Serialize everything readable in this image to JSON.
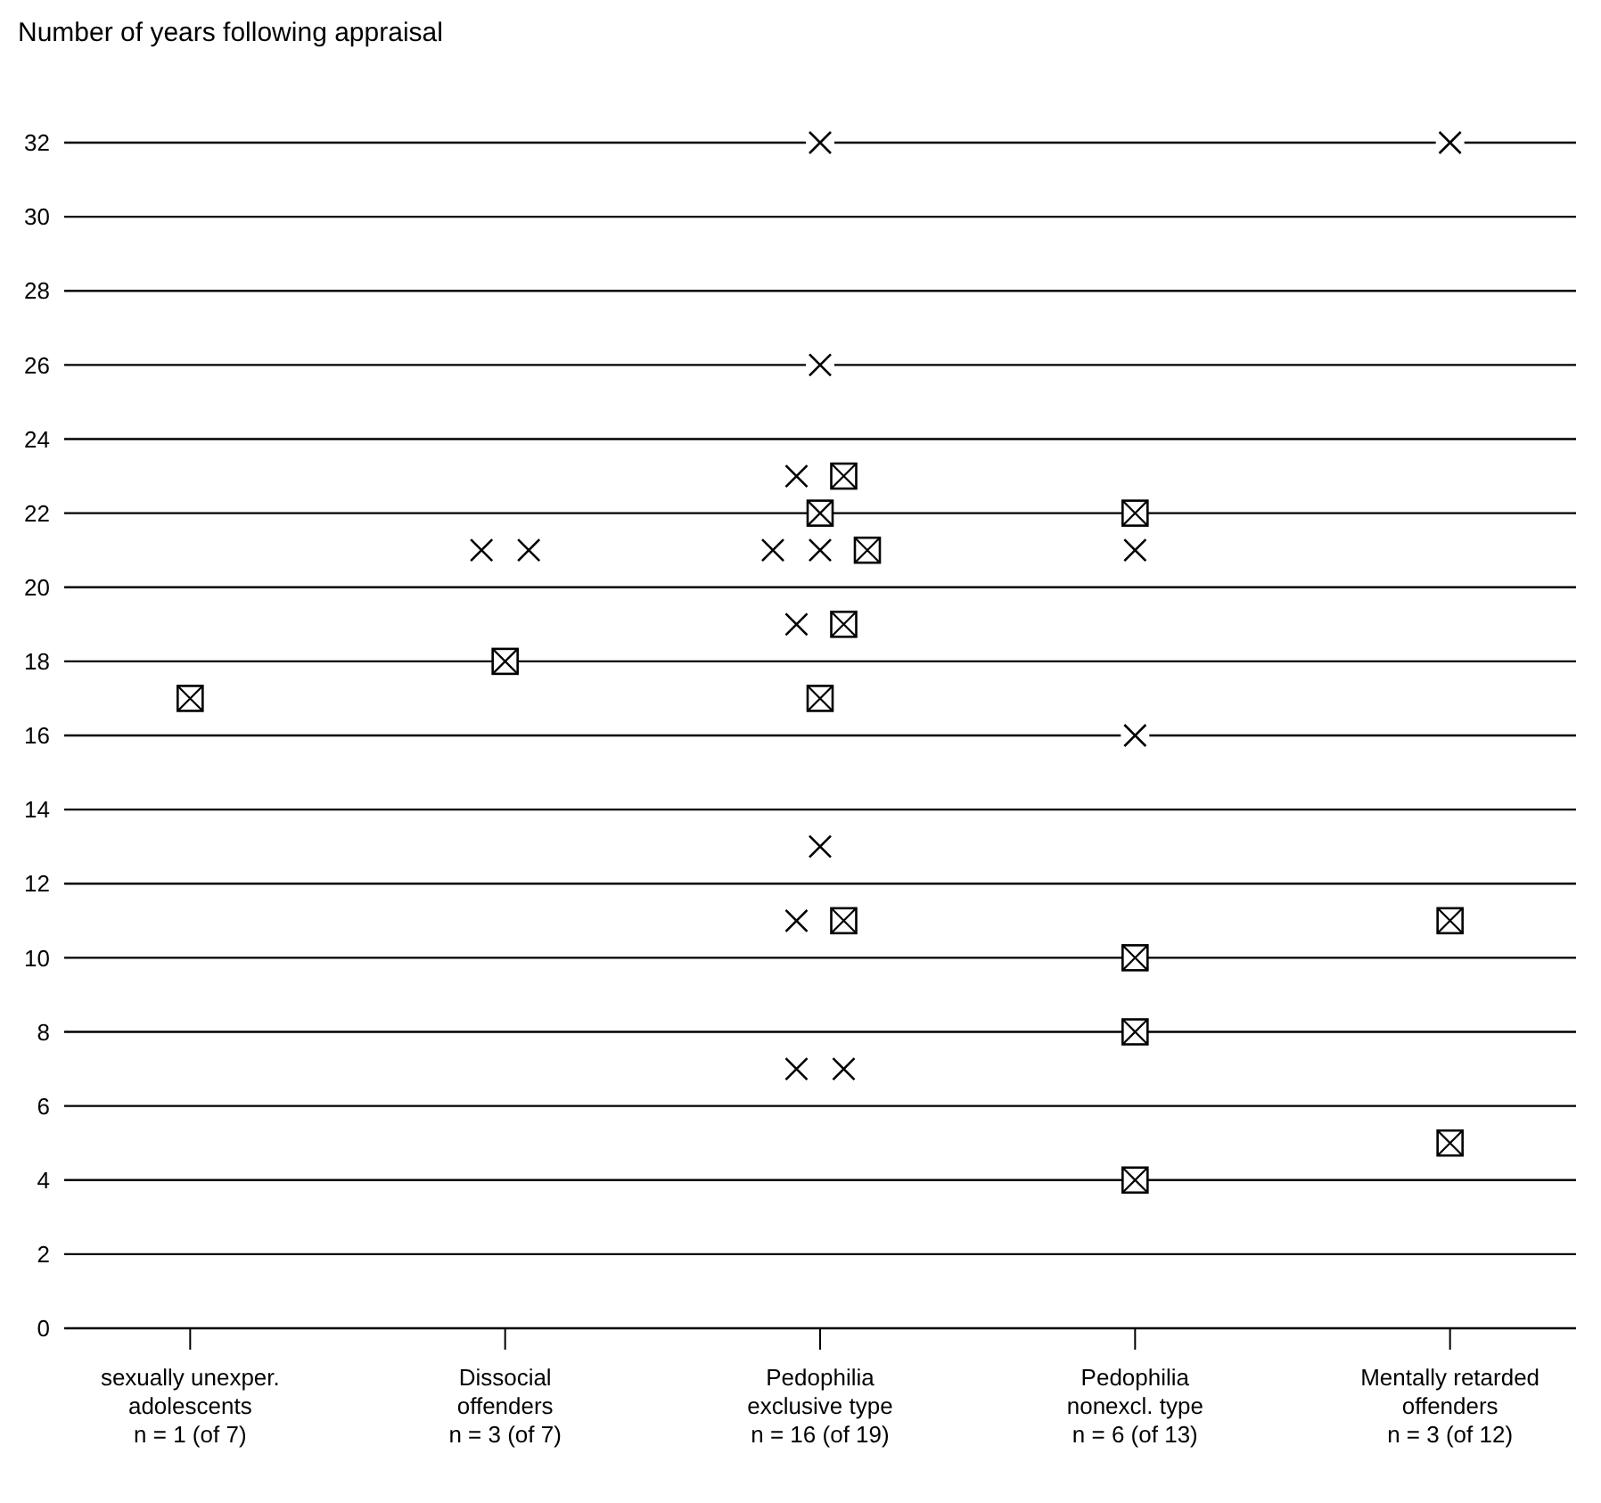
{
  "chart_data": {
    "type": "scatter",
    "ylabel": "Number of years following appraisal",
    "categories": [
      "sexually unexper.\nadolescents\nn = 1 (of 7)",
      "Dissocial\noffenders\nn = 3 (of 7)",
      "Pedophilia\nexclusive type\nn = 16 (of 19)",
      "Pedophilia\nnonexcl. type\nn = 6 (of 13)",
      "Mentally retarded\noffenders\nn = 3 (of 12)"
    ],
    "ylim": [
      0,
      32
    ],
    "yticks": [
      0,
      2,
      4,
      6,
      8,
      10,
      12,
      14,
      16,
      18,
      20,
      22,
      24,
      26,
      28,
      30,
      32
    ],
    "grid": "y",
    "series": [
      {
        "type": "scatter",
        "marker": "cross",
        "color": "#000000",
        "x": [
          "Dissocial\noffenders\nn = 3 (of 7)",
          "Dissocial\noffenders\nn = 3 (of 7)",
          "Pedophilia\nexclusive type\nn = 16 (of 19)",
          "Pedophilia\nexclusive type\nn = 16 (of 19)",
          "Pedophilia\nexclusive type\nn = 16 (of 19)",
          "Pedophilia\nexclusive type\nn = 16 (of 19)",
          "Pedophilia\nexclusive type\nn = 16 (of 19)",
          "Pedophilia\nexclusive type\nn = 16 (of 19)",
          "Pedophilia\nexclusive type\nn = 16 (of 19)",
          "Pedophilia\nexclusive type\nn = 16 (of 19)",
          "Pedophilia\nexclusive type\nn = 16 (of 19)",
          "Pedophilia\nexclusive type\nn = 16 (of 19)",
          "Pedophilia\nnonexcl. type\nn = 6 (of 13)",
          "Pedophilia\nnonexcl. type\nn = 6 (of 13)",
          "Mentally retarded\noffenders\nn = 3 (of 12)"
        ],
        "values": [
          21,
          21,
          32,
          26,
          23,
          21,
          21,
          19,
          13,
          11,
          7,
          7,
          21,
          16,
          32
        ]
      },
      {
        "type": "scatter",
        "marker": "square",
        "color": "#000000",
        "x": [
          "sexually unexper.\nadolescents\nn = 1 (of 7)",
          "Dissocial\noffenders\nn = 3 (of 7)",
          "Pedophilia\nexclusive type\nn = 16 (of 19)",
          "Pedophilia\nexclusive type\nn = 16 (of 19)",
          "Pedophilia\nexclusive type\nn = 16 (of 19)",
          "Pedophilia\nexclusive type\nn = 16 (of 19)",
          "Pedophilia\nexclusive type\nn = 16 (of 19)",
          "Pedophilia\nexclusive type\nn = 16 (of 19)",
          "Pedophilia\nnonexcl. type\nn = 6 (of 13)",
          "Pedophilia\nnonexcl. type\nn = 6 (of 13)",
          "Pedophilia\nnonexcl. type\nn = 6 (of 13)",
          "Pedophilia\nnonexcl. type\nn = 6 (of 13)",
          "Mentally retarded\noffenders\nn = 3 (of 12)",
          "Mentally retarded\noffenders\nn = 3 (of 12)"
        ],
        "values": [
          17,
          18,
          23,
          22,
          21,
          19,
          17,
          11,
          22,
          10,
          8,
          4,
          11,
          5
        ]
      }
    ]
  }
}
